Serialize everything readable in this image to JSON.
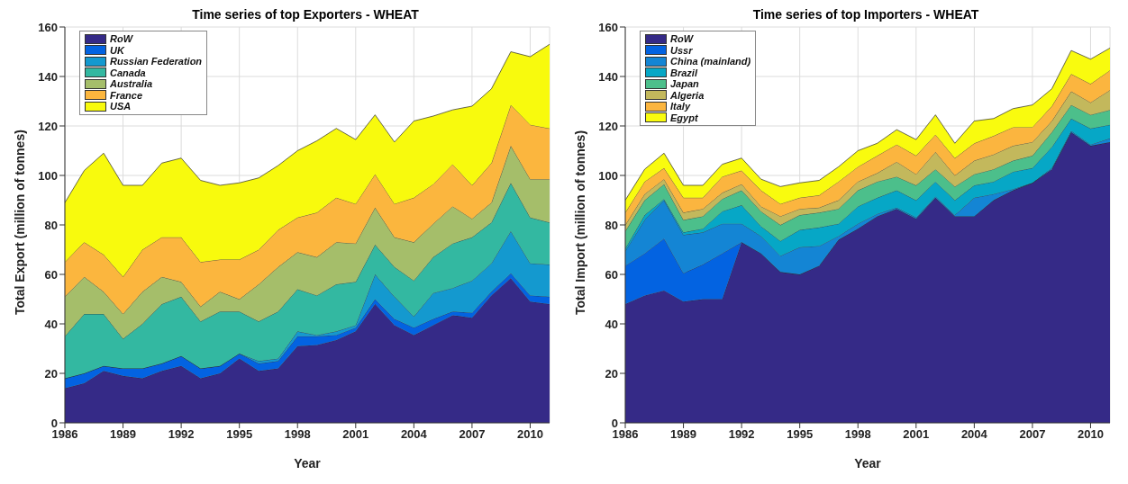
{
  "chart_data": [
    {
      "type": "area",
      "stacked": true,
      "title": "Time series of top Exporters - WHEAT",
      "xlabel": "Year",
      "ylabel": "Total Export (million of tonnes)",
      "x": [
        1986,
        1987,
        1988,
        1989,
        1990,
        1991,
        1992,
        1993,
        1994,
        1995,
        1996,
        1997,
        1998,
        1999,
        2000,
        2001,
        2002,
        2003,
        2004,
        2005,
        2006,
        2007,
        2008,
        2009,
        2010,
        2011
      ],
      "xlim": [
        1986,
        2011
      ],
      "xticks": [
        1986,
        1989,
        1992,
        1995,
        1998,
        2001,
        2004,
        2007,
        2010
      ],
      "ylim": [
        0,
        160
      ],
      "yticks": [
        0,
        20,
        40,
        60,
        80,
        100,
        120,
        140,
        160
      ],
      "grid": true,
      "legend": "top left",
      "series": [
        {
          "name": "RoW",
          "color": "#352a87",
          "values": [
            14,
            16,
            21,
            19,
            18,
            21,
            23,
            18,
            20,
            26,
            21,
            22,
            31,
            31.5,
            33.5,
            37,
            48,
            39.5,
            35.5,
            39.5,
            43.5,
            42.5,
            51.5,
            58.5,
            49,
            48
          ]
        },
        {
          "name": "UK",
          "color": "#0363e1",
          "values": [
            4,
            4,
            2,
            3,
            4,
            3,
            4,
            4,
            3,
            2,
            3,
            3,
            4,
            3.5,
            2,
            1.5,
            2,
            2.5,
            3,
            2.5,
            1.5,
            2,
            1.5,
            2,
            2.5,
            3
          ]
        },
        {
          "name": "Russian Federation",
          "color": "#1499cf",
          "values": [
            0,
            0,
            0,
            0,
            0,
            0,
            0,
            0,
            0,
            0,
            1,
            1,
            2,
            0.5,
            1.5,
            1,
            10,
            9,
            4.5,
            10.5,
            9.5,
            13,
            11.5,
            17,
            13,
            13
          ]
        },
        {
          "name": "Canada",
          "color": "#33b8a1",
          "values": [
            17,
            24,
            21,
            12,
            18,
            24,
            24,
            19,
            22,
            17,
            16,
            19,
            17,
            16,
            19,
            17.5,
            12,
            12,
            14.5,
            14.5,
            18,
            17.5,
            16.5,
            19.5,
            18.5,
            17
          ]
        },
        {
          "name": "Australia",
          "color": "#a5be6a",
          "values": [
            16,
            15,
            9,
            10,
            13,
            11,
            6,
            6,
            8,
            5,
            15,
            18,
            15,
            15.5,
            17,
            15.5,
            15,
            12,
            15.5,
            13.5,
            15,
            7.5,
            8,
            15,
            15.5,
            17.5
          ]
        },
        {
          "name": "France",
          "color": "#fbb63e",
          "values": [
            14,
            14,
            15,
            15,
            17,
            16,
            18,
            18,
            13,
            16,
            14,
            15,
            14,
            18,
            18,
            16,
            13.5,
            13.5,
            18,
            16,
            17,
            13.5,
            16,
            16.5,
            22,
            20.5
          ]
        },
        {
          "name": "USA",
          "color": "#f8fa0d",
          "values": [
            24,
            29,
            41,
            37,
            26,
            30,
            32,
            33,
            30,
            31,
            29,
            26,
            27,
            29,
            28,
            26,
            24,
            25,
            31,
            27.5,
            22,
            32,
            30,
            21.5,
            27.5,
            34
          ]
        }
      ]
    },
    {
      "type": "area",
      "stacked": true,
      "title": "Time series of top Importers - WHEAT",
      "xlabel": "Year",
      "ylabel": "Total Import (million of tonnes)",
      "x": [
        1986,
        1987,
        1988,
        1989,
        1990,
        1991,
        1992,
        1993,
        1994,
        1995,
        1996,
        1997,
        1998,
        1999,
        2000,
        2001,
        2002,
        2003,
        2004,
        2005,
        2006,
        2007,
        2008,
        2009,
        2010,
        2011
      ],
      "xlim": [
        1986,
        2011
      ],
      "xticks": [
        1986,
        1989,
        1992,
        1995,
        1998,
        2001,
        2004,
        2007,
        2010
      ],
      "ylim": [
        0,
        160
      ],
      "yticks": [
        0,
        20,
        40,
        60,
        80,
        100,
        120,
        140,
        160
      ],
      "grid": true,
      "legend": "top left",
      "series": [
        {
          "name": "RoW",
          "color": "#352a87",
          "values": [
            48,
            51.5,
            53.5,
            49,
            50,
            50,
            73,
            68.5,
            61,
            60,
            63.5,
            74,
            78.5,
            83.5,
            86.5,
            82.5,
            91,
            83.5,
            83.5,
            90,
            94,
            97,
            102.5,
            117.5,
            112,
            113.5
          ]
        },
        {
          "name": "Ussr",
          "color": "#0363e1",
          "values": [
            15.5,
            17,
            21,
            11.5,
            14,
            18.5,
            0,
            0,
            0,
            0,
            0,
            0,
            0,
            0,
            0,
            0,
            0,
            0,
            0,
            0,
            0,
            0,
            0,
            0,
            0,
            0
          ]
        },
        {
          "name": "China (mainland)",
          "color": "#1485d4",
          "values": [
            6,
            13.5,
            15.5,
            15.5,
            13,
            12,
            7.5,
            7,
            6.5,
            11,
            8,
            1.5,
            2,
            1,
            0.5,
            0.5,
            0.5,
            0.5,
            7.5,
            2.5,
            0.5,
            0,
            0.5,
            0.5,
            0.5,
            1.5
          ]
        },
        {
          "name": "Brazil",
          "color": "#06a7c6",
          "values": [
            1,
            2,
            0.5,
            1,
            1.5,
            5,
            7.5,
            4,
            6,
            7,
            7.5,
            5,
            7,
            6.5,
            7,
            7,
            6,
            6,
            5,
            5,
            7,
            6,
            8.5,
            5,
            6.5,
            5.5
          ]
        },
        {
          "name": "Japan",
          "color": "#4cbf8b",
          "values": [
            7,
            6,
            6,
            5,
            5,
            5,
            6,
            6,
            6.5,
            6,
            6,
            6,
            6.5,
            6.5,
            5.5,
            6,
            5,
            5.5,
            4.5,
            5,
            4.5,
            5,
            6,
            5.5,
            5.5,
            6
          ]
        },
        {
          "name": "Algeria",
          "color": "#c3b85c",
          "values": [
            2.5,
            2.5,
            2,
            3,
            3,
            2.5,
            2.5,
            2,
            3.5,
            2.5,
            2,
            3.5,
            3.5,
            3.5,
            6,
            4.5,
            7,
            4.5,
            5.5,
            6,
            6,
            5.5,
            4.5,
            5.5,
            5,
            8
          ]
        },
        {
          "name": "Italy",
          "color": "#fbb53f",
          "values": [
            5,
            5,
            4.5,
            6,
            4.5,
            6.5,
            5.5,
            6.5,
            5,
            4.5,
            5,
            7.5,
            6,
            7,
            7,
            7.5,
            7,
            7,
            7,
            7.5,
            7.5,
            6,
            6,
            7,
            7.5,
            8
          ]
        },
        {
          "name": "Egypt",
          "color": "#f9fb0e",
          "values": [
            5,
            5,
            6,
            5,
            5,
            5,
            5,
            4.5,
            7,
            6,
            6,
            6,
            6.5,
            5,
            6,
            6.5,
            8,
            6,
            9,
            7,
            7.5,
            9,
            7,
            9.5,
            10,
            9
          ]
        }
      ]
    }
  ]
}
